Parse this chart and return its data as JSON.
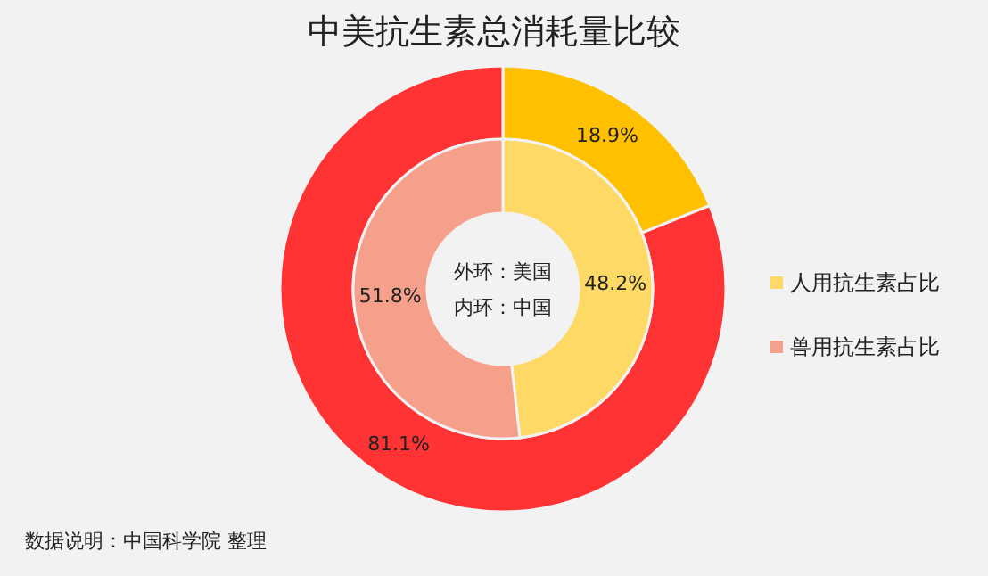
{
  "chart_data": {
    "type": "donut",
    "title": "中美抗生素总消耗量比较",
    "categories": [
      "人用抗生素占比",
      "兽用抗生素占比"
    ],
    "series": [
      {
        "colors": [
          "#ffc000",
          "#ff3333"
        ],
        "values": [
          18.9,
          81.1
        ],
        "value_labels": [
          "18.9%",
          "81.1%"
        ]
      },
      {
        "colors": [
          "#ffd966",
          "#f4a08a"
        ],
        "values": [
          48.2,
          51.8
        ],
        "value_labels": [
          "48.2%",
          "51.8%"
        ]
      }
    ],
    "legend": "right",
    "annotations": [
      "外环：美国",
      "内环：中国",
      "数据说明：中国科学院 整理"
    ]
  }
}
